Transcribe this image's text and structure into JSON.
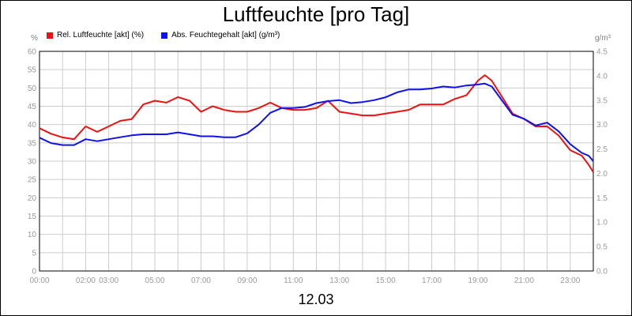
{
  "chart_data": {
    "type": "line",
    "title": "Luftfeuchte [pro Tag]",
    "subtitle": "12.03",
    "y_unit_left": "%",
    "y_unit_right": "g/m³",
    "ylim": [
      0,
      60
    ],
    "ylim_right": [
      0,
      4.5
    ],
    "yticks": [
      "0",
      "5",
      "10",
      "15",
      "20",
      "25",
      "30",
      "35",
      "40",
      "45",
      "50",
      "55",
      "60"
    ],
    "yticks_right": [
      "0.0",
      "0.5",
      "1.0",
      "1.5",
      "2.0",
      "2.5",
      "3.0",
      "3.5",
      "4.0",
      "4.5"
    ],
    "xlim": [
      0,
      24
    ],
    "xticks": [
      {
        "x": 0,
        "label": "00:00"
      },
      {
        "x": 2,
        "label": "02:00"
      },
      {
        "x": 3,
        "label": "03:00"
      },
      {
        "x": 5,
        "label": "05:00"
      },
      {
        "x": 7,
        "label": "07:00"
      },
      {
        "x": 9,
        "label": "09:00"
      },
      {
        "x": 11,
        "label": "11:00"
      },
      {
        "x": 13,
        "label": "13:00"
      },
      {
        "x": 15,
        "label": "15:00"
      },
      {
        "x": 17,
        "label": "17:00"
      },
      {
        "x": 19,
        "label": "19:00"
      },
      {
        "x": 21,
        "label": "21:00"
      },
      {
        "x": 23,
        "label": "23:00"
      }
    ],
    "grid": true,
    "legend_position": "top-left",
    "series": [
      {
        "name": "Rel. Luftfeuchte [akt] (%)",
        "axis": "left",
        "color": "#ee1111",
        "x": [
          0,
          0.5,
          1.0,
          1.5,
          2.0,
          2.5,
          3.0,
          3.5,
          4.0,
          4.5,
          5.0,
          5.5,
          6.0,
          6.5,
          7.0,
          7.5,
          8.0,
          8.5,
          9.0,
          9.5,
          10.0,
          10.5,
          11.0,
          11.5,
          12.0,
          12.5,
          13.0,
          13.5,
          14.0,
          14.5,
          15.0,
          15.5,
          16.0,
          16.5,
          17.0,
          17.5,
          18.0,
          18.5,
          19.0,
          19.3,
          19.6,
          20.0,
          20.5,
          21.0,
          21.5,
          22.0,
          22.5,
          23.0,
          23.5,
          23.8,
          24.0
        ],
        "y": [
          39,
          37.5,
          36.5,
          36,
          39.5,
          38,
          39.5,
          41,
          41.5,
          45.5,
          46.5,
          46,
          47.5,
          46.5,
          43.5,
          45,
          44,
          43.5,
          43.5,
          44.5,
          46,
          44.5,
          44,
          44,
          44.5,
          46.5,
          43.5,
          43,
          42.5,
          42.5,
          43,
          43.5,
          44,
          45.5,
          45.5,
          45.5,
          47,
          48,
          52,
          53.5,
          52,
          48,
          43,
          41.5,
          39.5,
          39.5,
          37,
          33,
          31.5,
          29,
          27
        ]
      },
      {
        "name": "Abs. Feuchtegehalt [akt] (g/m³)",
        "axis": "right",
        "color": "#1111ee",
        "x": [
          0,
          0.5,
          1.0,
          1.5,
          2.0,
          2.5,
          3.0,
          3.5,
          4.0,
          4.5,
          5.0,
          5.5,
          6.0,
          6.5,
          7.0,
          7.5,
          8.0,
          8.5,
          9.0,
          9.5,
          10.0,
          10.5,
          11.0,
          11.5,
          12.0,
          12.5,
          13.0,
          13.5,
          14.0,
          14.5,
          15.0,
          15.5,
          16.0,
          16.5,
          17.0,
          17.5,
          18.0,
          18.5,
          19.0,
          19.3,
          19.6,
          20.0,
          20.5,
          21.0,
          21.5,
          22.0,
          22.5,
          23.0,
          23.5,
          23.8,
          24.0
        ],
        "y": [
          2.73,
          2.62,
          2.58,
          2.58,
          2.7,
          2.66,
          2.7,
          2.74,
          2.78,
          2.8,
          2.8,
          2.8,
          2.84,
          2.8,
          2.76,
          2.76,
          2.74,
          2.74,
          2.82,
          3.0,
          3.24,
          3.34,
          3.34,
          3.36,
          3.44,
          3.48,
          3.5,
          3.44,
          3.46,
          3.5,
          3.56,
          3.66,
          3.72,
          3.72,
          3.74,
          3.78,
          3.76,
          3.8,
          3.82,
          3.84,
          3.78,
          3.52,
          3.2,
          3.12,
          2.98,
          3.04,
          2.86,
          2.6,
          2.42,
          2.36,
          2.25
        ]
      }
    ]
  }
}
